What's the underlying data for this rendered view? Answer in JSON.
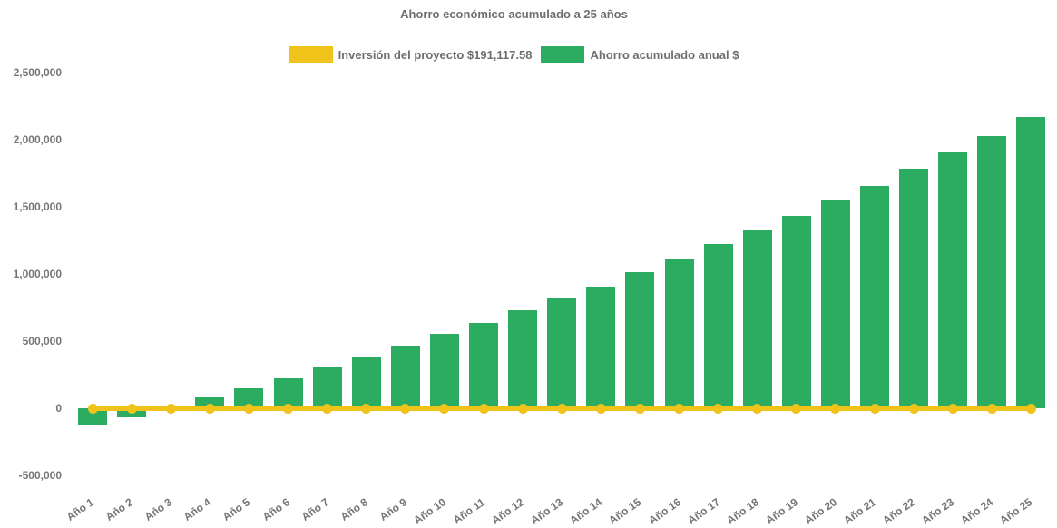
{
  "header": {
    "title": "Ahorro económico acumulado a 25 años"
  },
  "legend": {
    "position": "top-center",
    "items": [
      {
        "label": "Inversión del proyecto $191,117.58",
        "color": "#EFC319",
        "series_type": "line"
      },
      {
        "label": "Ahorro acumulado anual $",
        "color": "#2BAC60",
        "series_type": "bar"
      }
    ]
  },
  "chart_data": {
    "type": "bar",
    "title": "Ahorro económico acumulado a 25 años",
    "categories": [
      "Año 1",
      "Año 2",
      "Año 3",
      "Año 4",
      "Año 5",
      "Año 6",
      "Año 7",
      "Año 8",
      "Año 9",
      "Año 10",
      "Año 11",
      "Año 12",
      "Año 13",
      "Año 14",
      "Año 15",
      "Año 16",
      "Año 17",
      "Año 18",
      "Año 19",
      "Año 20",
      "Año 21",
      "Año 22",
      "Año 23",
      "Año 24",
      "Año 25"
    ],
    "series": [
      {
        "name": "Ahorro acumulado anual $",
        "type": "bar",
        "color": "#2BAC60",
        "values": [
          -122000,
          -68000,
          5000,
          78000,
          148000,
          224000,
          311000,
          387000,
          469000,
          553000,
          634000,
          729000,
          818000,
          907000,
          1012000,
          1114000,
          1220000,
          1326000,
          1432000,
          1545000,
          1658000,
          1781000,
          1906000,
          2028000,
          2170000
        ]
      },
      {
        "name": "Inversión del proyecto $191,117.58",
        "type": "line",
        "color": "#EFC319",
        "marker": "circle",
        "values": [
          0,
          0,
          0,
          0,
          0,
          0,
          0,
          0,
          0,
          0,
          0,
          0,
          0,
          0,
          0,
          0,
          0,
          0,
          0,
          0,
          0,
          0,
          0,
          0,
          0
        ]
      }
    ],
    "xlabel": "",
    "ylabel": "",
    "ylim": [
      -500000,
      2500000
    ],
    "yticks": [
      {
        "value": 2500000,
        "label": "2,500,000"
      },
      {
        "value": 2000000,
        "label": "2,000,000"
      },
      {
        "value": 1500000,
        "label": "1,500,000"
      },
      {
        "value": 1000000,
        "label": "1,000,000"
      },
      {
        "value": 500000,
        "label": "500,000"
      },
      {
        "value": 0,
        "label": "0"
      },
      {
        "value": -500000,
        "label": "-500,000"
      }
    ],
    "grid": false,
    "legend_position": "top"
  },
  "colors": {
    "bar_green": "#2BAC60",
    "line_yellow": "#EFC319",
    "title_gray": "#6E6E6E",
    "axis_label_gray": "#757575",
    "background": "#FFFFFF"
  }
}
